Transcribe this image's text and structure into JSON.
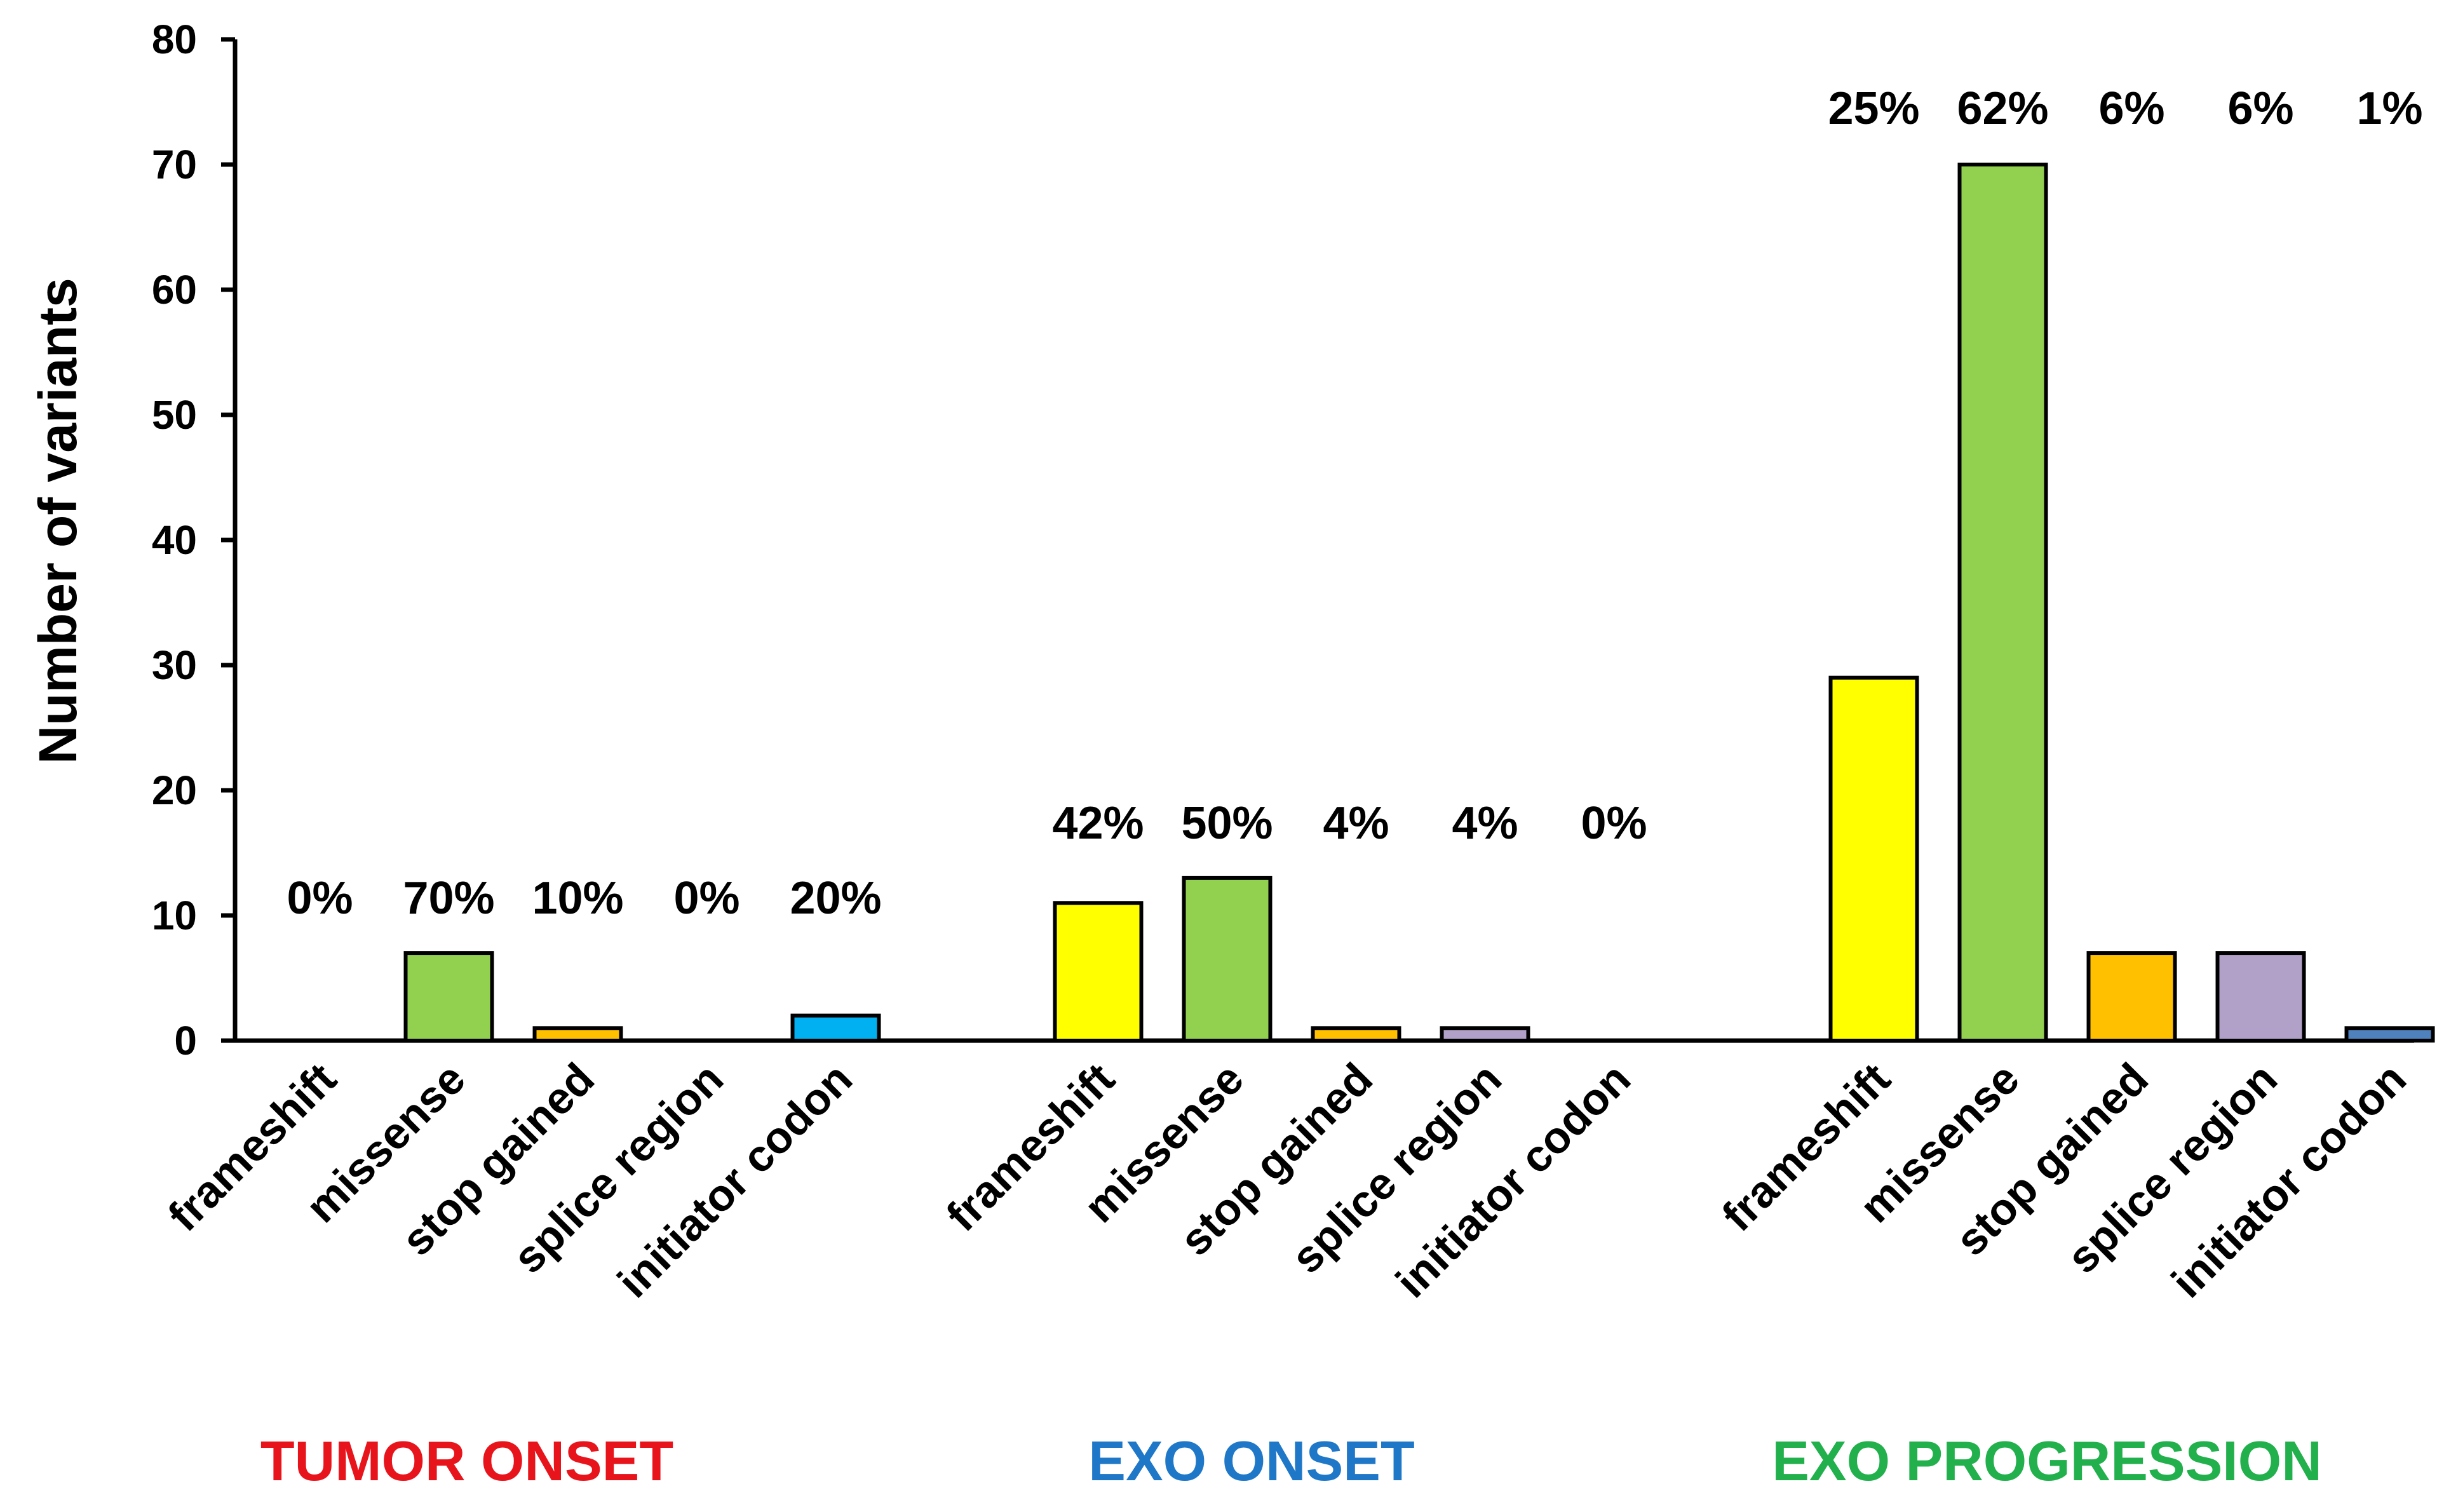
{
  "chart_data": {
    "type": "bar",
    "ylabel": "Number of variants",
    "ylim": [
      0,
      80
    ],
    "yticks": [
      0,
      10,
      20,
      30,
      40,
      50,
      60,
      70,
      80
    ],
    "grid": false,
    "groups": [
      {
        "name": "TUMOR ONSET",
        "name_color": "#e8141c",
        "bars": [
          {
            "category": "frameshift",
            "value": 0,
            "percent": "0%",
            "color": "#ffff00"
          },
          {
            "category": "missense",
            "value": 7,
            "percent": "70%",
            "color": "#92d050"
          },
          {
            "category": "stop gained",
            "value": 1,
            "percent": "10%",
            "color": "#ffc000"
          },
          {
            "category": "splice region",
            "value": 0,
            "percent": "0%",
            "color": "#b1a0c7"
          },
          {
            "category": "initiator codon",
            "value": 2,
            "percent": "20%",
            "color": "#00b0f0"
          }
        ]
      },
      {
        "name": "EXO ONSET",
        "name_color": "#1f77c8",
        "bars": [
          {
            "category": "frameshift",
            "value": 11,
            "percent": "42%",
            "color": "#ffff00"
          },
          {
            "category": "missense",
            "value": 13,
            "percent": "50%",
            "color": "#92d050"
          },
          {
            "category": "stop gained",
            "value": 1,
            "percent": "4%",
            "color": "#ffc000"
          },
          {
            "category": "splice region",
            "value": 1,
            "percent": "4%",
            "color": "#b1a0c7"
          },
          {
            "category": "initiator codon",
            "value": 0,
            "percent": "0%",
            "color": "#4f81bd"
          }
        ]
      },
      {
        "name": "EXO PROGRESSION",
        "name_color": "#22b04c",
        "bars": [
          {
            "category": "frameshift",
            "value": 29,
            "percent": "25%",
            "color": "#ffff00"
          },
          {
            "category": "missense",
            "value": 70,
            "percent": "62%",
            "color": "#92d050"
          },
          {
            "category": "stop gained",
            "value": 7,
            "percent": "6%",
            "color": "#ffc000"
          },
          {
            "category": "splice region",
            "value": 7,
            "percent": "6%",
            "color": "#b1a0c7"
          },
          {
            "category": "initiator codon",
            "value": 1,
            "percent": "1%",
            "color": "#4f81bd"
          }
        ]
      }
    ]
  }
}
